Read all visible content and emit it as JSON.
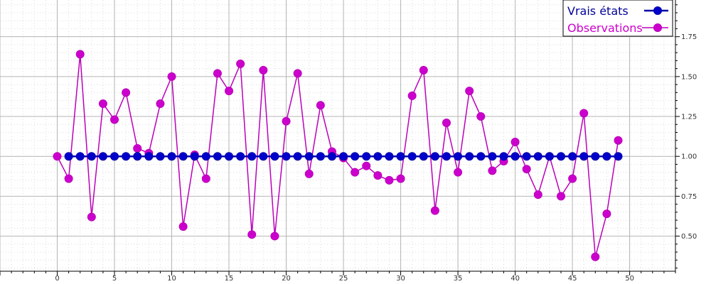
{
  "chart_data": {
    "type": "line",
    "title": "",
    "xlabel": "",
    "ylabel": "",
    "xlim": [
      -5,
      54
    ],
    "ylim": [
      0.28,
      1.98
    ],
    "x_ticks": [
      0,
      5,
      10,
      15,
      20,
      25,
      30,
      35,
      40,
      45,
      50
    ],
    "y_ticks": [
      0.5,
      0.75,
      1.0,
      1.25,
      1.5,
      1.75
    ],
    "y_tick_labels": [
      "0.50",
      "0.75",
      "1.00",
      "1.25",
      "1.50",
      "1.75"
    ],
    "grid": true,
    "y_axis_position": "right",
    "legend_position": "top-right",
    "series": [
      {
        "name": "Vrais états",
        "color": "#0000a8",
        "marker_fill": "#0000cc",
        "x": [
          1,
          2,
          3,
          4,
          5,
          6,
          7,
          8,
          9,
          10,
          11,
          12,
          13,
          14,
          15,
          16,
          17,
          18,
          19,
          20,
          21,
          22,
          23,
          24,
          25,
          26,
          27,
          28,
          29,
          30,
          31,
          32,
          33,
          34,
          35,
          36,
          37,
          38,
          39,
          40,
          41,
          42,
          43,
          44,
          45,
          46,
          47,
          48,
          49
        ],
        "values": [
          1,
          1,
          1,
          1,
          1,
          1,
          1,
          1,
          1,
          1,
          1,
          1,
          1,
          1,
          1,
          1,
          1,
          1,
          1,
          1,
          1,
          1,
          1,
          1,
          1,
          1,
          1,
          1,
          1,
          1,
          1,
          1,
          1,
          1,
          1,
          1,
          1,
          1,
          1,
          1,
          1,
          1,
          1,
          1,
          1,
          1,
          1,
          1,
          1
        ]
      },
      {
        "name": "Observations",
        "color": "#bb00bb",
        "marker_fill": "#cc00cc",
        "x": [
          0,
          1,
          2,
          3,
          4,
          5,
          6,
          7,
          8,
          9,
          10,
          11,
          12,
          13,
          14,
          15,
          16,
          17,
          18,
          19,
          20,
          21,
          22,
          23,
          24,
          25,
          26,
          27,
          28,
          29,
          30,
          31,
          32,
          33,
          34,
          35,
          36,
          37,
          38,
          39,
          40,
          41,
          42,
          43,
          44,
          45,
          46,
          47,
          48,
          49
        ],
        "values": [
          1.0,
          0.86,
          1.64,
          0.62,
          1.33,
          1.23,
          1.4,
          1.05,
          1.02,
          1.33,
          1.5,
          0.56,
          1.01,
          0.86,
          1.52,
          1.41,
          1.58,
          0.51,
          1.54,
          0.5,
          1.22,
          1.52,
          0.89,
          1.32,
          1.03,
          0.99,
          0.9,
          0.94,
          0.88,
          0.85,
          0.86,
          1.38,
          1.54,
          0.66,
          1.21,
          0.9,
          1.41,
          1.25,
          0.91,
          0.97,
          1.09,
          0.92,
          0.76,
          1.0,
          0.75,
          0.86,
          1.27,
          0.37,
          0.64,
          1.1
        ]
      }
    ]
  }
}
